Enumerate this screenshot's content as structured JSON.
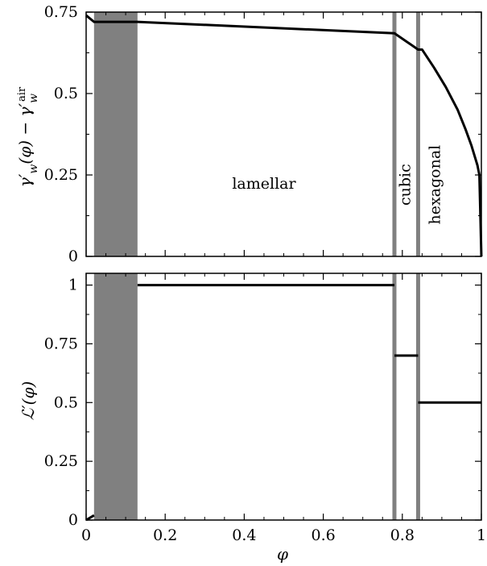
{
  "chart_data": [
    {
      "type": "line",
      "title": "",
      "xlabel": "",
      "ylabel": "γ′w(φ) − γ′airw",
      "xlim": [
        0,
        1
      ],
      "ylim": [
        0,
        0.75
      ],
      "yticks": [
        "0",
        "0.25",
        "0.5",
        "0.75"
      ],
      "grid": false,
      "shaded_band": {
        "x0": 0.02,
        "x1": 0.13,
        "color": "#808080"
      },
      "phase_boundaries": [
        0.78,
        0.84
      ],
      "region_labels": [
        {
          "text": "lamellar",
          "x": 0.45,
          "y": 0.22,
          "rotation": 0
        },
        {
          "text": "cubic",
          "x": 0.81,
          "y": 0.22,
          "rotation": -90
        },
        {
          "text": "hexagonal",
          "x": 0.885,
          "y": 0.22,
          "rotation": -90
        }
      ],
      "series": [
        {
          "color": "#000000",
          "x": [
            0,
            0.02,
            0.13,
            0.78,
            0.84,
            0.85,
            0.88,
            0.91,
            0.94,
            0.96,
            0.975,
            0.985,
            0.99,
            0.995,
            1.0
          ],
          "y": [
            0.74,
            0.72,
            0.72,
            0.685,
            0.635,
            0.635,
            0.58,
            0.52,
            0.45,
            0.39,
            0.34,
            0.3,
            0.28,
            0.25,
            0.0
          ]
        }
      ]
    },
    {
      "type": "line",
      "title": "",
      "xlabel": "φ",
      "ylabel": "ℒ′(φ)",
      "xlim": [
        0,
        1
      ],
      "ylim": [
        0,
        1.05
      ],
      "yticks": [
        "0",
        "0.25",
        "0.5",
        "0.75",
        "1"
      ],
      "xticks": [
        "0",
        "0.2",
        "0.4",
        "0.6",
        "0.8",
        "1"
      ],
      "grid": false,
      "shaded_band": {
        "x0": 0.02,
        "x1": 0.13,
        "color": "#808080"
      },
      "phase_boundaries": [
        0.78,
        0.84
      ],
      "series": [
        {
          "color": "#000000",
          "x": [
            0,
            0.02
          ],
          "y": [
            0,
            0.02
          ]
        },
        {
          "color": "#000000",
          "x": [
            0.13,
            0.78
          ],
          "y": [
            1.0,
            1.0
          ]
        },
        {
          "color": "#000000",
          "x": [
            0.78,
            0.84
          ],
          "y": [
            0.7,
            0.7
          ]
        },
        {
          "color": "#000000",
          "x": [
            0.84,
            1.0
          ],
          "y": [
            0.5,
            0.5
          ]
        }
      ]
    }
  ]
}
